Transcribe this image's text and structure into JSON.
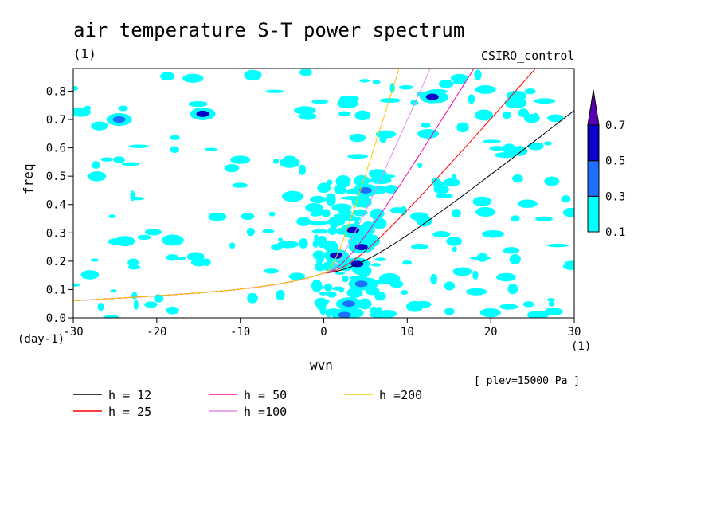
{
  "chart_data": {
    "type": "contour",
    "title": "air temperature S-T power spectrum",
    "units_label": "(1)",
    "model_label": "CSIRO_control",
    "xlabel": "wvn",
    "ylabel": "freq",
    "x_unit": "(1)",
    "y_unit": "(day-1)",
    "annotation": "[ plev=15000 Pa ]",
    "xlim": [
      -30,
      30
    ],
    "ylim": [
      0,
      0.88
    ],
    "x_ticks": [
      -30,
      -20,
      -10,
      0,
      10,
      20,
      30
    ],
    "x_tick_labels": [
      "-30",
      "-20",
      "-10",
      "0",
      "10",
      "20",
      "30"
    ],
    "y_ticks": [
      0.0,
      0.1,
      0.2,
      0.3,
      0.4,
      0.5,
      0.6,
      0.7,
      0.8
    ],
    "y_tick_labels": [
      "0.0",
      "0.1",
      "0.2",
      "0.3",
      "0.4",
      "0.5",
      "0.6",
      "0.7",
      "0.8"
    ],
    "colorbar": {
      "levels": [
        0.1,
        0.3,
        0.5,
        0.7
      ],
      "level_labels": [
        "0.1",
        "0.3",
        "0.5",
        "0.7"
      ],
      "colors": [
        "#00ffff",
        "#1e6eff",
        "#0a00c8",
        "#5a00b4"
      ]
    },
    "dispersion_curves": [
      {
        "name": "h = 12",
        "h": 12,
        "color": "#000000"
      },
      {
        "name": "h = 25",
        "h": 25,
        "color": "#ff0000"
      },
      {
        "name": "h = 50",
        "h": 50,
        "color": "#ff00aa"
      },
      {
        "name": "h =100",
        "h": 100,
        "color": "#e68ce6"
      },
      {
        "name": "h =200",
        "h": 200,
        "color": "#ffc800"
      }
    ],
    "power_blobs": [
      {
        "x": 4.0,
        "y": 0.19,
        "level": 0.5
      },
      {
        "x": 1.5,
        "y": 0.22,
        "level": 0.5
      },
      {
        "x": 3.5,
        "y": 0.31,
        "level": 0.5
      },
      {
        "x": 4.5,
        "y": 0.25,
        "level": 0.5
      },
      {
        "x": 3.0,
        "y": 0.05,
        "level": 0.3
      },
      {
        "x": 5.0,
        "y": 0.12,
        "level": 0.3
      },
      {
        "x": 5.0,
        "y": 0.45,
        "level": 0.3
      },
      {
        "x": 4.5,
        "y": 0.12,
        "level": 0.3
      },
      {
        "x": -14.5,
        "y": 0.72,
        "level": 0.5
      },
      {
        "x": -24.5,
        "y": 0.7,
        "level": 0.3
      },
      {
        "x": 13.0,
        "y": 0.78,
        "level": 0.5
      },
      {
        "x": 2.5,
        "y": 0.01,
        "level": 0.3
      }
    ]
  }
}
